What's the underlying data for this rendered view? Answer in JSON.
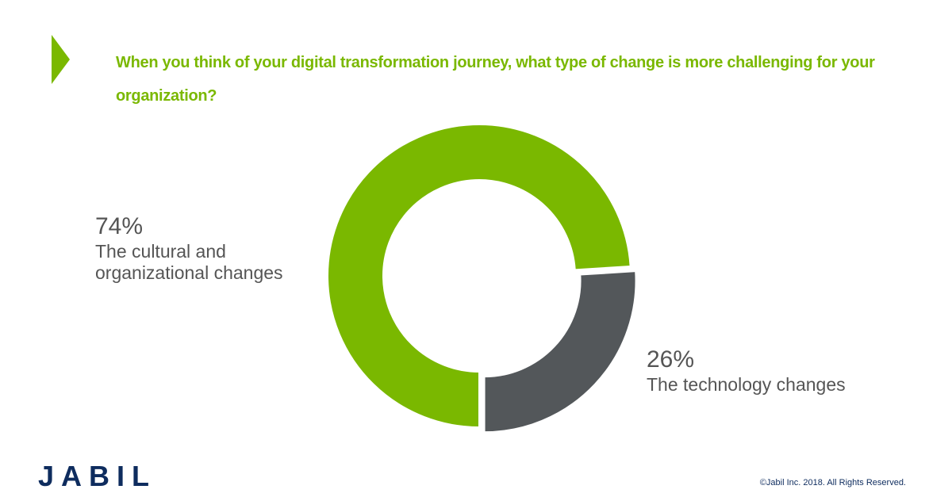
{
  "chart_data": {
    "type": "pie",
    "donut": true,
    "title": "When you think of your digital transformation journey, what type of change is more challenging for your organization?",
    "categories": [
      "The cultural and organizational changes",
      "The technology changes"
    ],
    "values": [
      74,
      26
    ],
    "value_labels": [
      "74%",
      "26%"
    ],
    "colors": [
      "#7ab800",
      "#53575a"
    ]
  },
  "logo": "JABIL",
  "copyright": "©Jabil Inc. 2018. All Rights Reserved."
}
